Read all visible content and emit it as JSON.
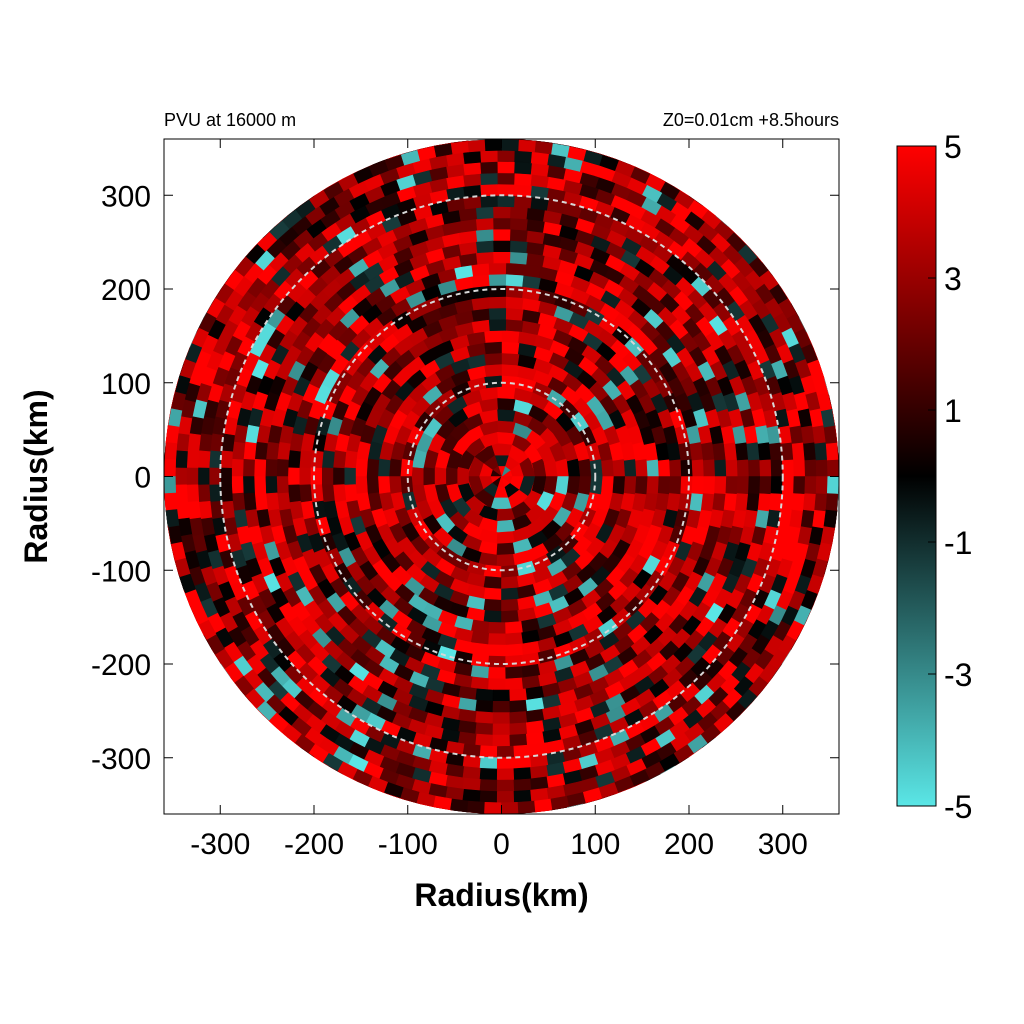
{
  "chart_data": {
    "type": "heatmap",
    "title_left": "PVU at 16000 m",
    "title_right": "Z0=0.01cm  +8.5hours",
    "xlabel": "Radius(km)",
    "ylabel": "Radius(km)",
    "xlim": [
      -360,
      360
    ],
    "ylim": [
      -360,
      360
    ],
    "x_ticks": [
      "-300",
      "-200",
      "-100",
      "0",
      "100",
      "200",
      "300"
    ],
    "y_ticks": [
      "300",
      "200",
      "100",
      "0",
      "-100",
      "-200",
      "-300"
    ],
    "domain_radius_km": 360,
    "reference_circles_km": [
      100,
      200,
      300
    ],
    "colorbar": {
      "range": [
        -5,
        5
      ],
      "ticks": [
        "5",
        "3",
        "1",
        "-1",
        "-3",
        "-5"
      ],
      "colors": [
        {
          "value": -5,
          "color": "#5ae6e6"
        },
        {
          "value": 0,
          "color": "#000000"
        },
        {
          "value": 5,
          "color": "#ff0000"
        }
      ]
    },
    "grid": false,
    "legend": "colorbar-right"
  }
}
